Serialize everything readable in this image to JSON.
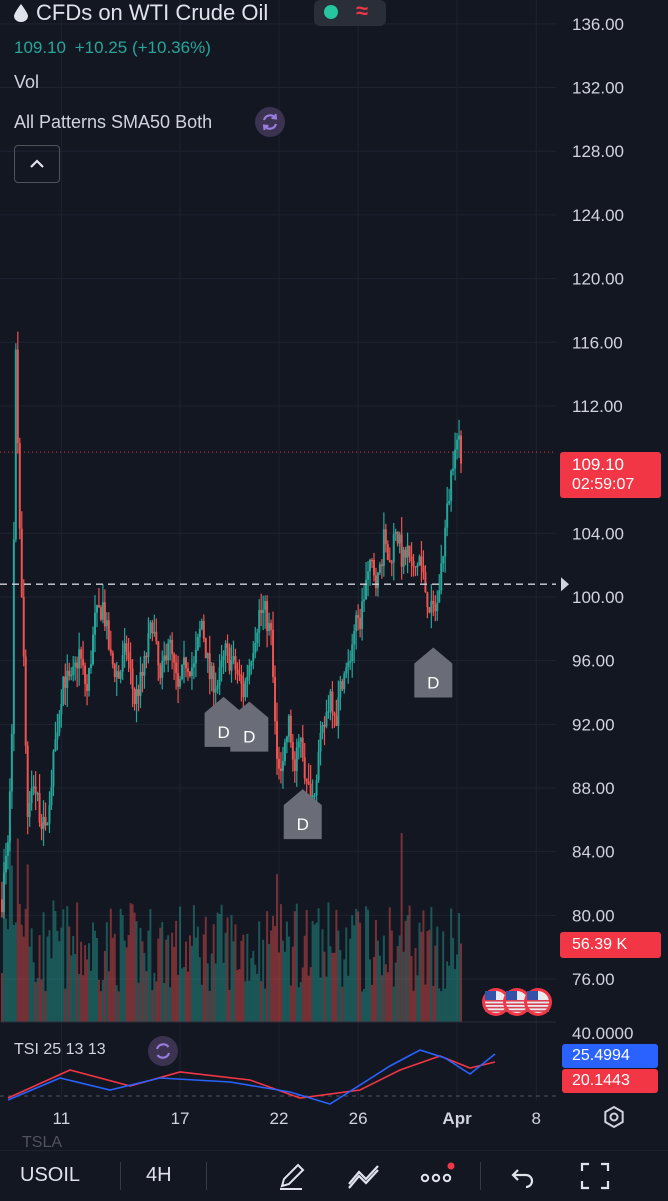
{
  "header": {
    "title": "CFDs on WTI Crude Oil",
    "price": "109.10",
    "change": "+10.25",
    "change_pct": "(+10.36%)",
    "vol_label": "Vol",
    "indicator_label": "All Patterns SMA50 Both"
  },
  "price_label": {
    "price": "109.10",
    "countdown": "02:59:07"
  },
  "volume_label": "56.39 K",
  "tsl": {
    "label": "TSI 25 13 13",
    "value1": "25.4994",
    "value2": "20.1443",
    "top_tick": "40.0000"
  },
  "colors": {
    "up": "#26a69a",
    "down": "#ef5350",
    "bg": "#131722",
    "accent": "#f23645",
    "tsi_blue": "#2962ff",
    "tsi_red": "#f23645"
  },
  "bottom_bar": {
    "symbol": "USOIL",
    "interval": "4H",
    "icons": [
      "pen-icon",
      "drawing-tools-icon",
      "more-icon",
      "undo-icon",
      "fullscreen-icon"
    ]
  },
  "watermark": "TSLA",
  "chart_data": {
    "type": "candlestick",
    "y_ticks": [
      "136.00",
      "132.00",
      "128.00",
      "124.00",
      "120.00",
      "116.00",
      "112.00",
      "104.00",
      "100.00",
      "96.00",
      "92.00",
      "88.00",
      "84.00",
      "80.00",
      "76.00"
    ],
    "y_tick_values": [
      136,
      132,
      128,
      124,
      120,
      116,
      112,
      104,
      100,
      96,
      92,
      88,
      84,
      80,
      76
    ],
    "ylim": [
      73.3,
      137.5
    ],
    "x_ticks": [
      "11",
      "17",
      "22",
      "26",
      "Apr",
      "8"
    ],
    "x_tick_pos": [
      11,
      17,
      22,
      26,
      31,
      35
    ],
    "xlim": [
      7.9,
      36.0
    ],
    "current_price": 109.1,
    "dashed_level": 100.8,
    "patterns": [
      {
        "label": "D",
        "x": 19.2,
        "y": 93.6
      },
      {
        "label": "D",
        "x": 20.5,
        "y": 93.3
      },
      {
        "label": "D",
        "x": 23.2,
        "y": 87.8
      },
      {
        "label": "D",
        "x": 29.8,
        "y": 96.7
      }
    ],
    "events_count": 3,
    "anchors": [
      [
        8.0,
        81.0
      ],
      [
        8.3,
        85.0
      ],
      [
        8.5,
        92.0
      ],
      [
        8.7,
        115.0
      ],
      [
        8.9,
        105.0
      ],
      [
        9.1,
        96.0
      ],
      [
        9.3,
        86.0
      ],
      [
        9.6,
        88.5
      ],
      [
        9.9,
        86.5
      ],
      [
        10.2,
        85.0
      ],
      [
        10.5,
        88.5
      ],
      [
        10.8,
        92.0
      ],
      [
        11.1,
        95.0
      ],
      [
        11.5,
        94.5
      ],
      [
        11.9,
        96.5
      ],
      [
        12.3,
        94.0
      ],
      [
        12.7,
        98.5
      ],
      [
        13.1,
        99.5
      ],
      [
        13.5,
        96.0
      ],
      [
        13.9,
        95.0
      ],
      [
        14.3,
        96.8
      ],
      [
        14.7,
        93.5
      ],
      [
        15.1,
        95.0
      ],
      [
        15.6,
        98.5
      ],
      [
        16.0,
        94.5
      ],
      [
        16.4,
        97.5
      ],
      [
        16.9,
        94.0
      ],
      [
        17.3,
        96.0
      ],
      [
        17.7,
        95.5
      ],
      [
        18.1,
        98.5
      ],
      [
        18.5,
        95.0
      ],
      [
        18.9,
        94.5
      ],
      [
        19.3,
        96.5
      ],
      [
        19.8,
        95.5
      ],
      [
        20.2,
        94.0
      ],
      [
        20.6,
        96.5
      ],
      [
        21.0,
        99.0
      ],
      [
        21.3,
        99.0
      ],
      [
        21.6,
        97.5
      ],
      [
        21.9,
        89.5
      ],
      [
        22.2,
        90.0
      ],
      [
        22.5,
        92.0
      ],
      [
        22.8,
        89.0
      ],
      [
        23.1,
        91.5
      ],
      [
        23.4,
        88.0
      ],
      [
        23.7,
        87.5
      ],
      [
        24.0,
        90.0
      ],
      [
        24.3,
        92.0
      ],
      [
        24.6,
        94.0
      ],
      [
        24.9,
        92.5
      ],
      [
        25.2,
        95.0
      ],
      [
        25.5,
        95.5
      ],
      [
        25.8,
        98.0
      ],
      [
        26.1,
        98.5
      ],
      [
        26.4,
        101.0
      ],
      [
        26.7,
        102.0
      ],
      [
        27.0,
        101.0
      ],
      [
        27.3,
        103.5
      ],
      [
        27.6,
        102.0
      ],
      [
        27.9,
        104.5
      ],
      [
        28.2,
        102.5
      ],
      [
        28.5,
        103.0
      ],
      [
        28.8,
        101.5
      ],
      [
        29.1,
        102.5
      ],
      [
        29.4,
        100.5
      ],
      [
        29.7,
        99.0
      ],
      [
        30.0,
        99.5
      ],
      [
        30.3,
        103.0
      ],
      [
        30.6,
        106.5
      ],
      [
        30.9,
        110.0
      ],
      [
        31.2,
        109.1
      ]
    ]
  }
}
